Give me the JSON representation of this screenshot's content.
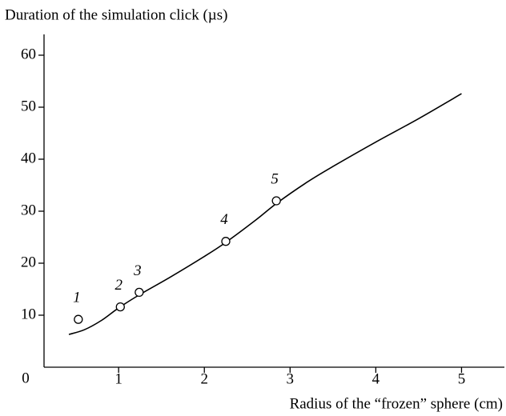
{
  "chart_data": {
    "type": "line",
    "ylabel": "Duration of the simulation click (µs)",
    "xlabel": "Radius of the “frozen” sphere (cm)",
    "origin_label": "0",
    "xlim": [
      0.13,
      5.5
    ],
    "ylim": [
      0,
      64
    ],
    "xticks": [
      1,
      2,
      3,
      4,
      5
    ],
    "yticks": [
      10,
      20,
      30,
      40,
      50,
      60
    ],
    "color": "#000000",
    "curve": {
      "x": [
        0.42,
        0.6,
        0.8,
        1.0,
        1.25,
        1.6,
        2.0,
        2.25,
        2.6,
        2.85,
        3.2,
        3.5,
        4.0,
        4.5,
        5.0
      ],
      "y": [
        6.3,
        7.2,
        9.0,
        11.4,
        14.0,
        17.3,
        21.3,
        24.0,
        28.3,
        31.6,
        35.6,
        38.6,
        43.3,
        47.8,
        52.6
      ]
    },
    "points": {
      "x": [
        0.53,
        1.02,
        1.24,
        2.25,
        2.84
      ],
      "y": [
        9.2,
        11.6,
        14.4,
        24.2,
        32.0
      ],
      "labels": [
        "1",
        "2",
        "3",
        "4",
        "5"
      ]
    }
  }
}
